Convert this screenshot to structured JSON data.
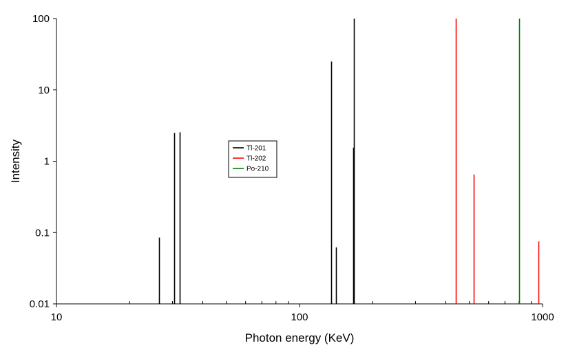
{
  "chart_data": {
    "type": "bar",
    "xlabel": "Photon energy (KeV)",
    "ylabel": "Intensity",
    "x_scale": "log",
    "y_scale": "log",
    "xlim": [
      10,
      1000
    ],
    "ylim": [
      0.01,
      100
    ],
    "x_ticks": [
      "10",
      "100",
      "1000"
    ],
    "y_ticks": [
      "0.01",
      "0.1",
      "1",
      "10",
      "100"
    ],
    "grid": false,
    "legend_placement": "center-left",
    "series": [
      {
        "name": "Tl-201",
        "color": "#000000",
        "points": [
          {
            "x": 26.5,
            "y": 0.085
          },
          {
            "x": 30.6,
            "y": 2.5
          },
          {
            "x": 32.2,
            "y": 2.55
          },
          {
            "x": 135.3,
            "y": 25
          },
          {
            "x": 141.1,
            "y": 0.062
          },
          {
            "x": 165.9,
            "y": 1.55
          },
          {
            "x": 167.4,
            "y": 100
          }
        ]
      },
      {
        "name": "Tl-202",
        "color": "#ff0000",
        "points": [
          {
            "x": 439.5,
            "y": 100
          },
          {
            "x": 520.2,
            "y": 0.65
          },
          {
            "x": 960,
            "y": 0.075
          }
        ]
      },
      {
        "name": "Po-210",
        "color": "#008000",
        "points": [
          {
            "x": 803,
            "y": 100
          }
        ]
      }
    ]
  }
}
